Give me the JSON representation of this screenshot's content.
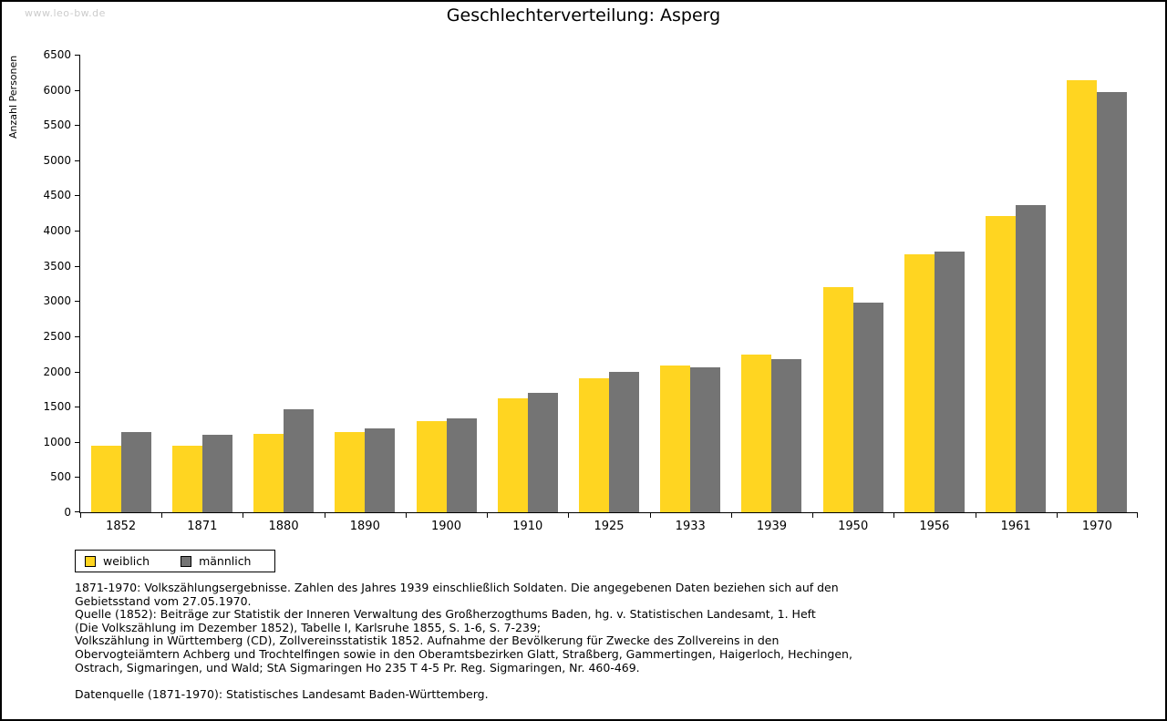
{
  "watermark": "www.leo-bw.de",
  "chart_data": {
    "type": "bar",
    "title": "Geschlechterverteilung: Asperg",
    "xlabel": "",
    "ylabel": "Anzahl Personen",
    "ylim": [
      0,
      6500
    ],
    "ytick_step": 500,
    "grid": false,
    "legend_position": "bottom-left",
    "categories": [
      "1852",
      "1871",
      "1880",
      "1890",
      "1900",
      "1910",
      "1925",
      "1933",
      "1939",
      "1950",
      "1956",
      "1961",
      "1970"
    ],
    "series": [
      {
        "name": "weiblich",
        "color": "#ffd521",
        "values": [
          940,
          950,
          1110,
          1140,
          1290,
          1620,
          1900,
          2090,
          2240,
          3200,
          3670,
          4210,
          6140
        ]
      },
      {
        "name": "männlich",
        "color": "#747474",
        "values": [
          1140,
          1100,
          1470,
          1190,
          1340,
          1700,
          1990,
          2060,
          2170,
          2980,
          3710,
          4360,
          5970
        ]
      }
    ]
  },
  "footer": {
    "lines": [
      "1871-1970: Volkszählungsergebnisse. Zahlen des Jahres 1939 einschließlich Soldaten. Die angegebenen Daten beziehen sich auf den",
      "Gebietsstand vom 27.05.1970.",
      "Quelle (1852): Beiträge zur Statistik der Inneren Verwaltung des Großherzogthums Baden, hg. v. Statistischen Landesamt, 1. Heft",
      "(Die Volkszählung im Dezember 1852), Tabelle I, Karlsruhe 1855, S. 1-6, S. 7-239;",
      "Volkszählung in Württemberg (CD), Zollvereinsstatistik 1852. Aufnahme der Bevölkerung für Zwecke des Zollvereins in den",
      "Obervogteiämtern Achberg und Trochtelfingen sowie in den Oberamtsbezirken Glatt, Straßberg, Gammertingen, Haigerloch, Hechingen,",
      "Ostrach, Sigmaringen, und Wald; StA Sigmaringen Ho 235 T 4-5 Pr. Reg. Sigmaringen, Nr. 460-469."
    ],
    "datasource": "Datenquelle (1871-1970): Statistisches Landesamt Baden-Württemberg."
  }
}
